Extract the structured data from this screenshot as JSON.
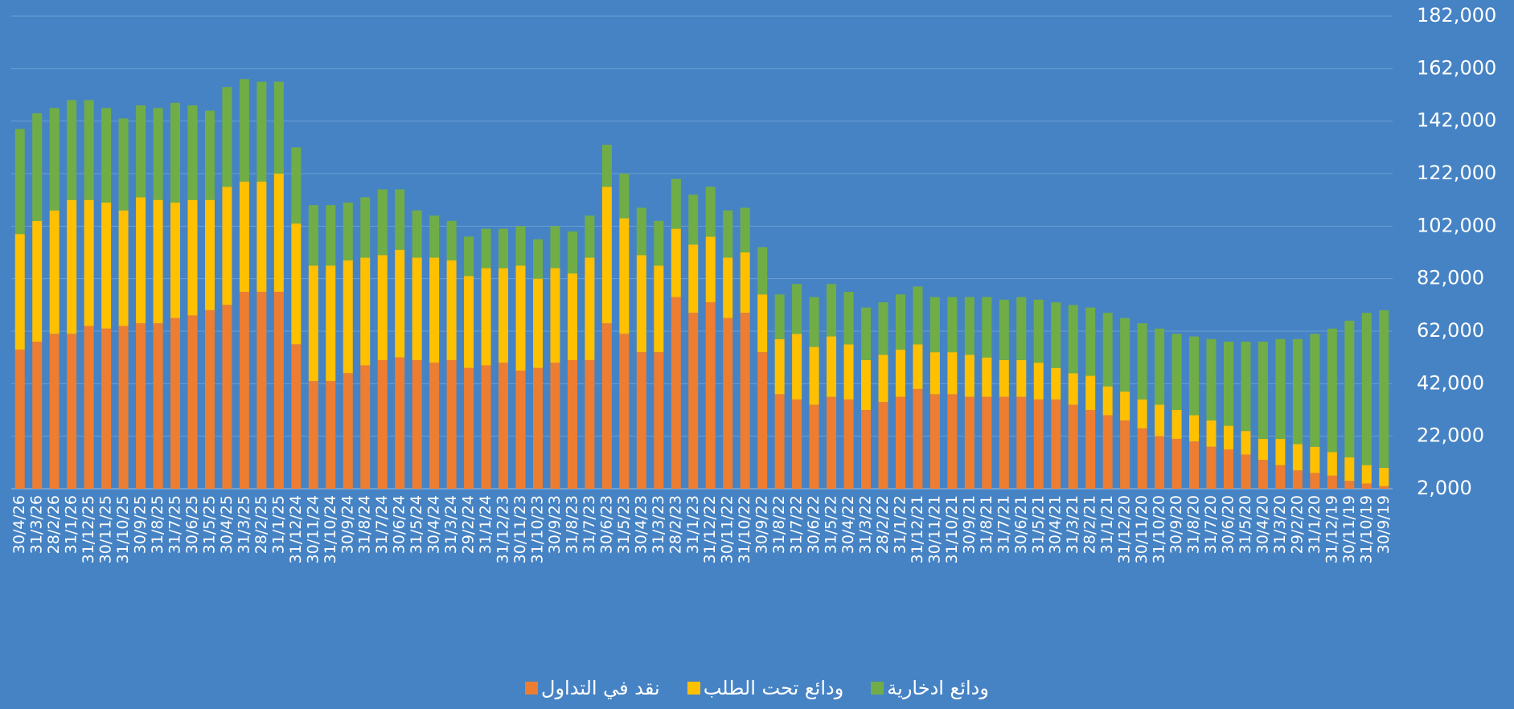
{
  "chart_data": {
    "type": "stacked_bar",
    "categories": [
      "30/4/26",
      "31/3/26",
      "28/2/26",
      "31/1/26",
      "31/12/25",
      "30/11/25",
      "31/10/25",
      "30/9/25",
      "31/8/25",
      "31/7/25",
      "30/6/25",
      "31/5/25",
      "30/4/25",
      "31/3/25",
      "28/2/25",
      "31/1/25",
      "31/12/24",
      "30/11/24",
      "31/10/24",
      "30/9/24",
      "31/8/24",
      "31/7/24",
      "30/6/24",
      "31/5/24",
      "30/4/24",
      "31/3/24",
      "29/2/24",
      "31/1/24",
      "31/12/23",
      "30/11/23",
      "31/10/23",
      "30/9/23",
      "31/8/23",
      "31/7/23",
      "30/6/23",
      "31/5/23",
      "30/4/23",
      "31/3/23",
      "28/2/23",
      "31/1/23",
      "31/12/22",
      "30/11/22",
      "31/10/22",
      "30/9/22",
      "31/8/22",
      "31/7/22",
      "30/6/22",
      "31/5/22",
      "30/4/22",
      "31/3/22",
      "28/2/22",
      "31/1/22",
      "31/12/21",
      "30/11/21",
      "31/10/21",
      "30/9/21",
      "31/8/21",
      "31/7/21",
      "30/6/21",
      "31/5/21",
      "30/4/21",
      "31/3/21",
      "28/2/21",
      "31/1/21",
      "31/12/20",
      "30/11/20",
      "31/10/20",
      "30/9/20",
      "31/8/20",
      "31/7/20",
      "30/6/20",
      "31/5/20",
      "30/4/20",
      "31/3/20",
      "29/2/20",
      "31/1/20",
      "31/12/19",
      "30/11/19",
      "31/10/19",
      "30/9/19"
    ],
    "series": [
      {
        "name": "نقد في التداول",
        "color": "#ed7d31",
        "values": [
          55000,
          58000,
          61000,
          61000,
          64000,
          63000,
          64000,
          65000,
          65000,
          67000,
          68000,
          70000,
          72000,
          77000,
          77000,
          77000,
          57000,
          43000,
          43000,
          46000,
          49000,
          51000,
          52000,
          51000,
          50000,
          51000,
          48000,
          49000,
          50000,
          47000,
          48000,
          50000,
          51000,
          51000,
          65000,
          61000,
          54000,
          54000,
          75000,
          69000,
          73000,
          67000,
          69000,
          54000,
          38000,
          36000,
          34000,
          37000,
          36000,
          32000,
          35000,
          37000,
          40000,
          38000,
          38000,
          37000,
          37000,
          37000,
          37000,
          36000,
          36000,
          34000,
          32000,
          30000,
          28000,
          25000,
          22000,
          21000,
          20000,
          18000,
          17000,
          15000,
          13000,
          11000,
          9000,
          8000,
          7000,
          5000,
          4000,
          3000
        ]
      },
      {
        "name": "ودائع تحت الطلب",
        "color": "#ffc000",
        "values": [
          44000,
          46000,
          47000,
          51000,
          48000,
          48000,
          44000,
          48000,
          47000,
          44000,
          44000,
          42000,
          45000,
          42000,
          42000,
          45000,
          46000,
          44000,
          44000,
          43000,
          41000,
          40000,
          41000,
          39000,
          40000,
          38000,
          35000,
          37000,
          36000,
          40000,
          34000,
          36000,
          33000,
          39000,
          52000,
          44000,
          37000,
          33000,
          26000,
          26000,
          25000,
          23000,
          23000,
          22000,
          21000,
          25000,
          22000,
          23000,
          21000,
          19000,
          18000,
          18000,
          17000,
          16000,
          16000,
          16000,
          15000,
          14000,
          14000,
          14000,
          12000,
          12000,
          13000,
          11000,
          11000,
          11000,
          12000,
          11000,
          10000,
          10000,
          9000,
          9000,
          8000,
          10000,
          10000,
          10000,
          9000,
          9000,
          7000,
          7000
        ]
      },
      {
        "name": "ودائع ادخارية",
        "color": "#70ad47",
        "values": [
          40000,
          41000,
          39000,
          38000,
          38000,
          36000,
          35000,
          35000,
          35000,
          38000,
          36000,
          34000,
          38000,
          39000,
          38000,
          35000,
          29000,
          23000,
          23000,
          22000,
          23000,
          25000,
          23000,
          18000,
          16000,
          15000,
          15000,
          15000,
          15000,
          15000,
          15000,
          16000,
          16000,
          16000,
          16000,
          17000,
          18000,
          17000,
          19000,
          19000,
          19000,
          18000,
          17000,
          18000,
          17000,
          19000,
          19000,
          20000,
          20000,
          20000,
          20000,
          21000,
          22000,
          21000,
          21000,
          22000,
          23000,
          23000,
          24000,
          24000,
          25000,
          26000,
          26000,
          28000,
          28000,
          29000,
          29000,
          29000,
          30000,
          31000,
          32000,
          34000,
          37000,
          38000,
          40000,
          43000,
          47000,
          52000,
          58000,
          60000
        ]
      }
    ],
    "ylim": [
      2000,
      182000
    ],
    "yticks": [
      {
        "value": 2000,
        "label": "2,000"
      },
      {
        "value": 22000,
        "label": "22,000"
      },
      {
        "value": 42000,
        "label": "42,000"
      },
      {
        "value": 62000,
        "label": "62,000"
      },
      {
        "value": 82000,
        "label": "82,000"
      },
      {
        "value": 102000,
        "label": "102,000"
      },
      {
        "value": 122000,
        "label": "122,000"
      },
      {
        "value": 142000,
        "label": "142,000"
      },
      {
        "value": 162000,
        "label": "162,000"
      },
      {
        "value": 182000,
        "label": "182,000"
      }
    ],
    "grid": true,
    "legend": "bottom"
  }
}
